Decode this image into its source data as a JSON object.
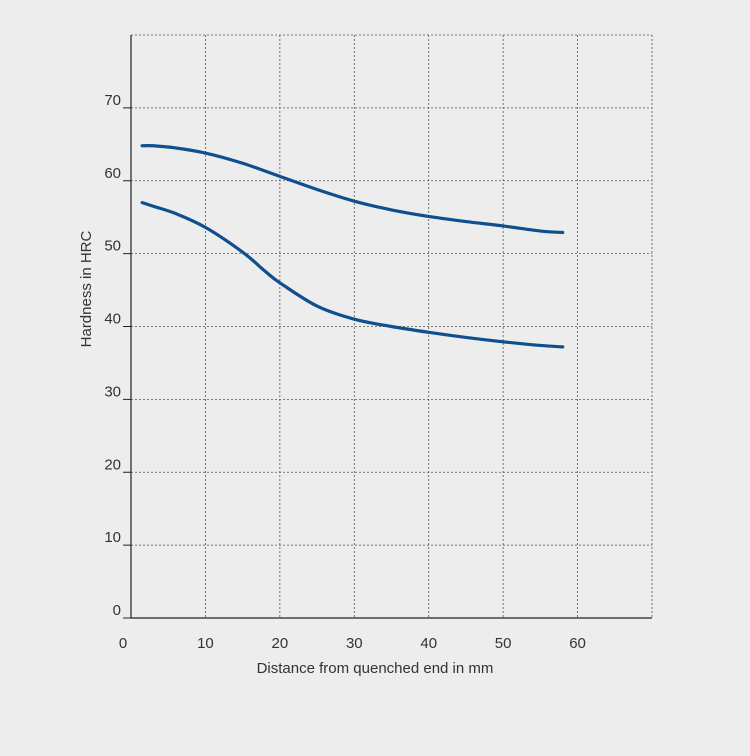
{
  "chart_data": {
    "type": "line",
    "title": "",
    "xlabel": "Distance from quenched end in mm",
    "ylabel": "Hardness in HRC",
    "xlim": [
      0,
      70
    ],
    "ylim": [
      0,
      80
    ],
    "x_ticks": [
      0,
      10,
      20,
      30,
      40,
      50,
      60
    ],
    "y_ticks": [
      0,
      10,
      20,
      30,
      40,
      50,
      60,
      70
    ],
    "grid": true,
    "legend": "none",
    "line_color": "#0f4f8f",
    "series": [
      {
        "x": [
          1.5,
          3,
          6,
          10,
          15,
          20,
          25,
          30,
          35,
          40,
          45,
          50,
          55,
          58
        ],
        "values": [
          64.8,
          64.8,
          64.5,
          63.8,
          62.4,
          60.6,
          58.8,
          57.2,
          56.0,
          55.1,
          54.4,
          53.8,
          53.1,
          52.9
        ]
      },
      {
        "x": [
          1.5,
          3,
          6,
          10,
          15,
          18,
          20,
          25,
          30,
          35,
          40,
          45,
          50,
          55,
          58
        ],
        "values": [
          57.0,
          56.5,
          55.5,
          53.6,
          50.2,
          47.6,
          46.0,
          42.8,
          41.0,
          40.0,
          39.2,
          38.5,
          37.9,
          37.4,
          37.2
        ]
      }
    ]
  }
}
